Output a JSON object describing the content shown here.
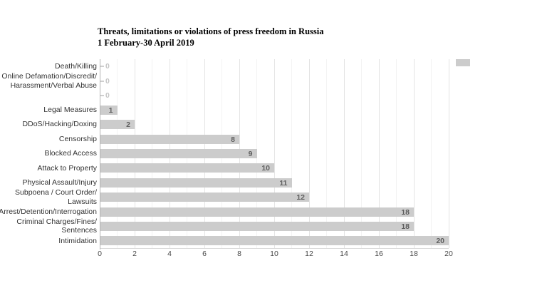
{
  "chart_data": {
    "type": "bar",
    "orientation": "horizontal",
    "title": "Threats, limitations or violations of press freedom in Russia",
    "subtitle": "1 February-30 April 2019",
    "categories": [
      "Death/Killing",
      "Online Defamation/Discredit/\nHarassment/Verbal Abuse",
      "",
      "Legal Measures",
      "DDoS/Hacking/Doxing",
      "Censorship",
      "Blocked Access",
      "Attack to Property",
      "Physical Assault/Injury",
      "Subpoena / Court Order/\nLawsuits",
      "Arrest/Detention/Interrogation",
      "Criminal Charges/Fines/\nSentences",
      "Intimidation"
    ],
    "values": [
      0,
      0,
      0,
      1,
      2,
      8,
      9,
      10,
      11,
      12,
      18,
      18,
      20
    ],
    "xlim": [
      0,
      20
    ],
    "x_ticks": [
      0,
      2,
      4,
      6,
      8,
      10,
      12,
      14,
      16,
      18,
      20
    ],
    "grid": true,
    "legend_position": "top-right",
    "legend_label": "",
    "colors": {
      "bar": "#cccccc",
      "value_label": "#5f5f5f",
      "zero_label": "#c6c6c6",
      "zero_dash": "#cfcfcf",
      "gridline_major": "#e4e4e4",
      "gridline_minor": "#f3f3f3",
      "axis_line": "#b3b3b3",
      "category_label": "#333333",
      "tick_label": "#494949",
      "title": "#000000"
    }
  }
}
